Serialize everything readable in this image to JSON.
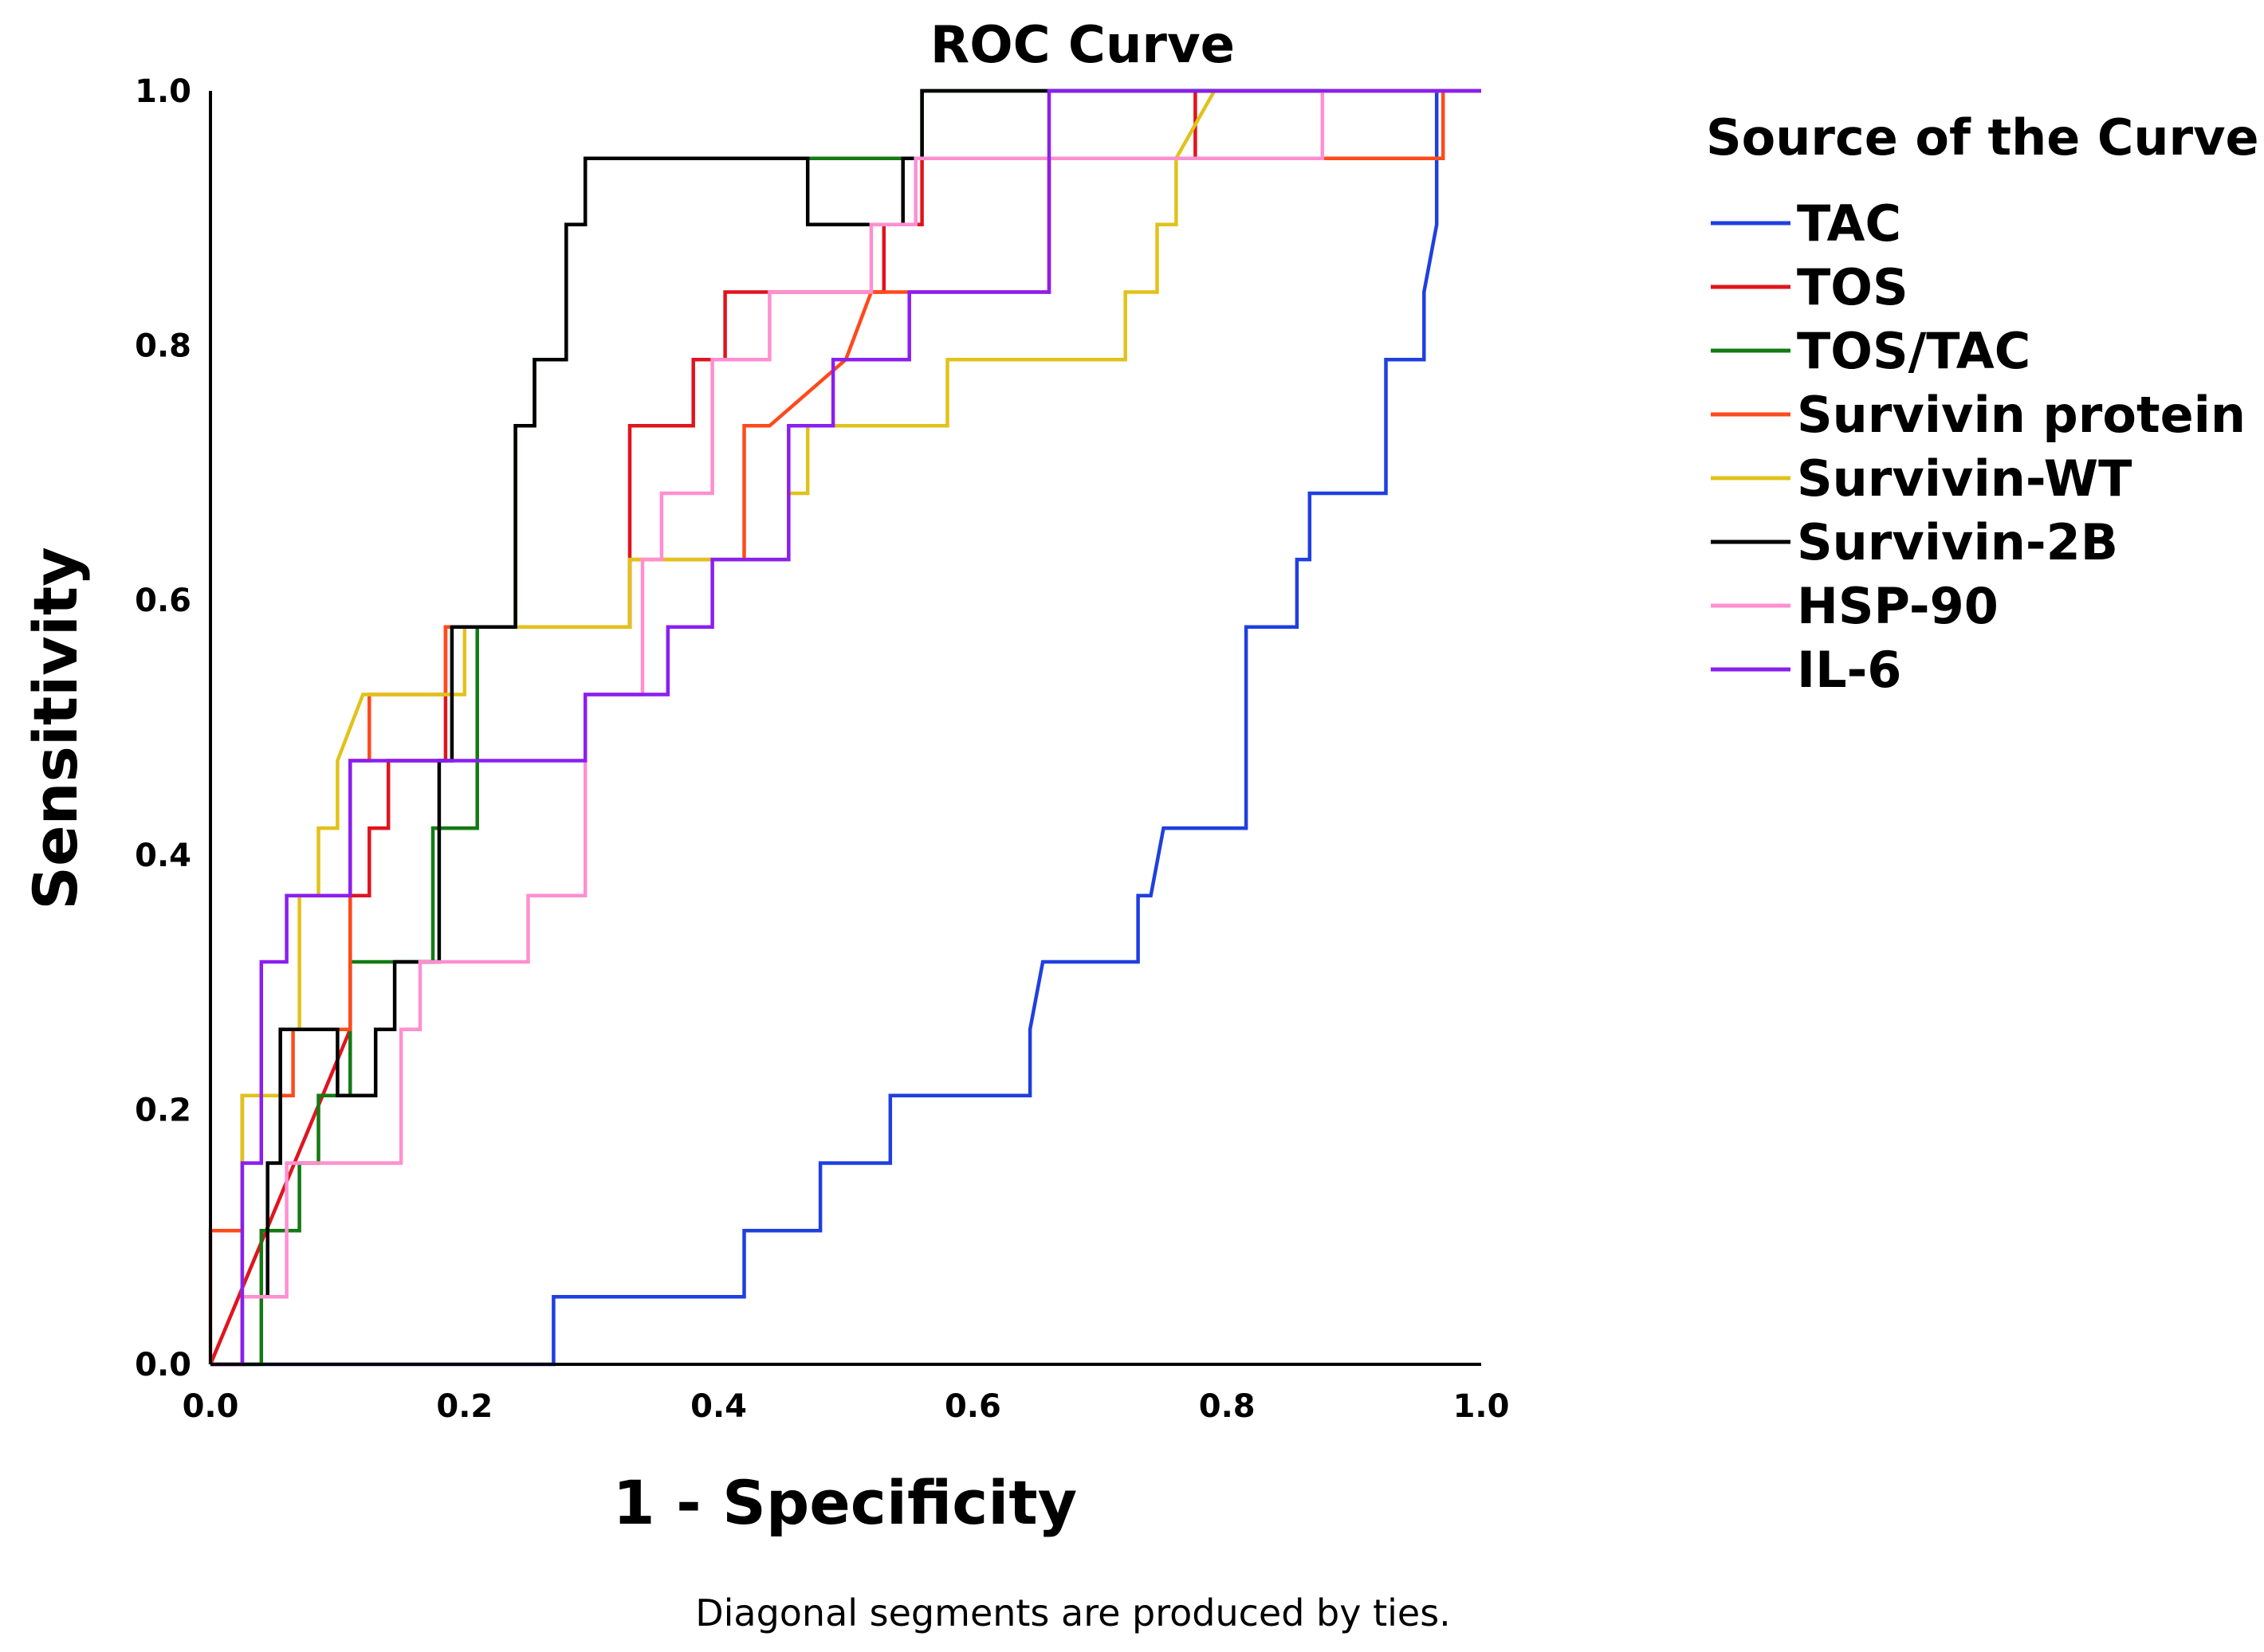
{
  "chart_data": {
    "type": "line",
    "title": "ROC Curve",
    "xlabel": "1 - Specificity",
    "ylabel": "Sensitivity",
    "xlim": [
      0,
      1
    ],
    "ylim": [
      0,
      1
    ],
    "xticks": [
      "0.0",
      "0.2",
      "0.4",
      "0.6",
      "0.8",
      "1.0"
    ],
    "yticks": [
      "0.0",
      "0.2",
      "0.4",
      "0.6",
      "0.8",
      "1.0"
    ],
    "legend_title": "Source of the Curve",
    "legend_position": "right",
    "footnote": "Diagonal segments are produced by ties.",
    "series": [
      {
        "name": "TAC",
        "color": "#1f3fe0",
        "x": [
          0,
          0,
          0.27,
          0.27,
          0.42,
          0.42,
          0.48,
          0.48,
          0.535,
          0.535,
          0.645,
          0.645,
          0.655,
          0.73,
          0.73,
          0.74,
          0.75,
          0.75,
          0.815,
          0.815,
          0.855,
          0.855,
          0.865,
          0.865,
          0.925,
          0.925,
          0.955,
          0.955,
          0.965,
          0.965,
          1.0
        ],
        "y": [
          0,
          0,
          0,
          0.053,
          0.053,
          0.105,
          0.105,
          0.158,
          0.158,
          0.211,
          0.211,
          0.263,
          0.316,
          0.316,
          0.368,
          0.368,
          0.421,
          0.421,
          0.421,
          0.579,
          0.579,
          0.632,
          0.632,
          0.684,
          0.684,
          0.789,
          0.789,
          0.842,
          0.895,
          1.0,
          1.0
        ]
      },
      {
        "name": "TOS",
        "color": "#e0141e",
        "x": [
          0,
          0.11,
          0.11,
          0.125,
          0.125,
          0.14,
          0.14,
          0.15,
          0.15,
          0.185,
          0.185,
          0.33,
          0.33,
          0.38,
          0.38,
          0.405,
          0.405,
          0.42,
          0.42,
          0.53,
          0.53,
          0.56,
          0.56,
          0.575,
          0.575,
          0.775,
          0.775,
          0.8,
          1.0
        ],
        "y": [
          0,
          0.263,
          0.368,
          0.368,
          0.421,
          0.421,
          0.474,
          0.474,
          0.474,
          0.474,
          0.579,
          0.579,
          0.737,
          0.737,
          0.789,
          0.789,
          0.842,
          0.842,
          0.842,
          0.842,
          0.895,
          0.895,
          0.947,
          0.947,
          0.947,
          0.947,
          1.0,
          1.0,
          1.0
        ]
      },
      {
        "name": "TOS/TAC",
        "color": "#137a13",
        "x": [
          0,
          0.04,
          0.04,
          0.07,
          0.07,
          0.085,
          0.085,
          0.11,
          0.11,
          0.175,
          0.175,
          0.21,
          0.21,
          0.24,
          0.24,
          0.255,
          0.255,
          0.28,
          0.28,
          0.295,
          0.295,
          0.56,
          0.56,
          1.0
        ],
        "y": [
          0,
          0,
          0.105,
          0.105,
          0.158,
          0.158,
          0.211,
          0.211,
          0.316,
          0.316,
          0.421,
          0.421,
          0.579,
          0.579,
          0.737,
          0.737,
          0.789,
          0.789,
          0.895,
          0.895,
          0.947,
          0.947,
          1.0,
          1.0
        ]
      },
      {
        "name": "Survivin protein",
        "color": "#ff4a1c",
        "x": [
          0,
          0,
          0.01,
          0.01,
          0.025,
          0.025,
          0.055,
          0.055,
          0.065,
          0.065,
          0.1,
          0.1,
          0.11,
          0.11,
          0.125,
          0.125,
          0.185,
          0.185,
          0.33,
          0.33,
          0.405,
          0.42,
          0.42,
          0.44,
          0.5,
          0.52,
          0.6,
          0.6,
          0.66,
          0.66,
          0.97,
          0.97,
          1.0
        ],
        "y": [
          0,
          0.105,
          0.105,
          0.105,
          0.105,
          0.211,
          0.211,
          0.211,
          0.211,
          0.263,
          0.263,
          0.263,
          0.263,
          0.474,
          0.474,
          0.526,
          0.526,
          0.579,
          0.579,
          0.632,
          0.632,
          0.632,
          0.737,
          0.737,
          0.789,
          0.842,
          0.842,
          0.842,
          0.842,
          0.947,
          0.947,
          1.0,
          1.0
        ]
      },
      {
        "name": "Survivin-WT",
        "color": "#e1c21b",
        "x": [
          0,
          0.025,
          0.025,
          0.04,
          0.04,
          0.055,
          0.055,
          0.07,
          0.07,
          0.085,
          0.085,
          0.1,
          0.1,
          0.12,
          0.125,
          0.2,
          0.2,
          0.33,
          0.33,
          0.41,
          0.41,
          0.455,
          0.455,
          0.47,
          0.47,
          0.5,
          0.5,
          0.58,
          0.58,
          0.72,
          0.72,
          0.745,
          0.745,
          0.76,
          0.76,
          0.79,
          1.0
        ],
        "y": [
          0,
          0,
          0.211,
          0.211,
          0.211,
          0.211,
          0.263,
          0.263,
          0.368,
          0.368,
          0.421,
          0.421,
          0.474,
          0.526,
          0.526,
          0.526,
          0.579,
          0.579,
          0.632,
          0.632,
          0.632,
          0.632,
          0.684,
          0.684,
          0.737,
          0.737,
          0.737,
          0.737,
          0.789,
          0.789,
          0.842,
          0.842,
          0.895,
          0.895,
          0.947,
          1.0,
          1.0
        ]
      },
      {
        "name": "Survivin-2B",
        "color": "#000000",
        "x": [
          0,
          0.025,
          0.025,
          0.045,
          0.045,
          0.055,
          0.055,
          0.1,
          0.1,
          0.11,
          0.11,
          0.13,
          0.13,
          0.145,
          0.145,
          0.18,
          0.18,
          0.19,
          0.19,
          0.24,
          0.24,
          0.255,
          0.255,
          0.28,
          0.28,
          0.295,
          0.295,
          0.47,
          0.47,
          0.545,
          0.545,
          0.56,
          0.56,
          1.0
        ],
        "y": [
          0,
          0,
          0.053,
          0.053,
          0.158,
          0.158,
          0.263,
          0.263,
          0.211,
          0.211,
          0.211,
          0.211,
          0.263,
          0.263,
          0.316,
          0.316,
          0.474,
          0.474,
          0.579,
          0.579,
          0.737,
          0.737,
          0.789,
          0.789,
          0.895,
          0.895,
          0.947,
          0.947,
          0.895,
          0.895,
          0.947,
          0.947,
          1.0,
          1.0
        ]
      },
      {
        "name": "HSP-90",
        "color": "#ff8fd0",
        "x": [
          0,
          0.025,
          0.025,
          0.06,
          0.06,
          0.11,
          0.11,
          0.15,
          0.15,
          0.165,
          0.165,
          0.2,
          0.2,
          0.25,
          0.25,
          0.295,
          0.295,
          0.34,
          0.34,
          0.355,
          0.355,
          0.395,
          0.395,
          0.44,
          0.44,
          0.52,
          0.52,
          0.555,
          0.555,
          0.875,
          0.875,
          1.0
        ],
        "y": [
          0,
          0,
          0.053,
          0.053,
          0.158,
          0.158,
          0.158,
          0.158,
          0.263,
          0.263,
          0.316,
          0.316,
          0.316,
          0.316,
          0.368,
          0.368,
          0.526,
          0.526,
          0.632,
          0.632,
          0.684,
          0.684,
          0.789,
          0.789,
          0.842,
          0.842,
          0.895,
          0.895,
          0.947,
          0.947,
          1.0,
          1.0
        ]
      },
      {
        "name": "IL-6",
        "color": "#8a1ff0",
        "x": [
          0,
          0.025,
          0.025,
          0.04,
          0.04,
          0.06,
          0.06,
          0.11,
          0.11,
          0.295,
          0.295,
          0.36,
          0.36,
          0.395,
          0.395,
          0.455,
          0.455,
          0.49,
          0.49,
          0.55,
          0.55,
          0.66,
          0.66,
          1.0
        ],
        "y": [
          0,
          0,
          0.158,
          0.158,
          0.316,
          0.316,
          0.368,
          0.368,
          0.474,
          0.474,
          0.526,
          0.526,
          0.579,
          0.579,
          0.632,
          0.632,
          0.737,
          0.737,
          0.789,
          0.789,
          0.842,
          0.842,
          1.0,
          1.0
        ]
      }
    ]
  }
}
